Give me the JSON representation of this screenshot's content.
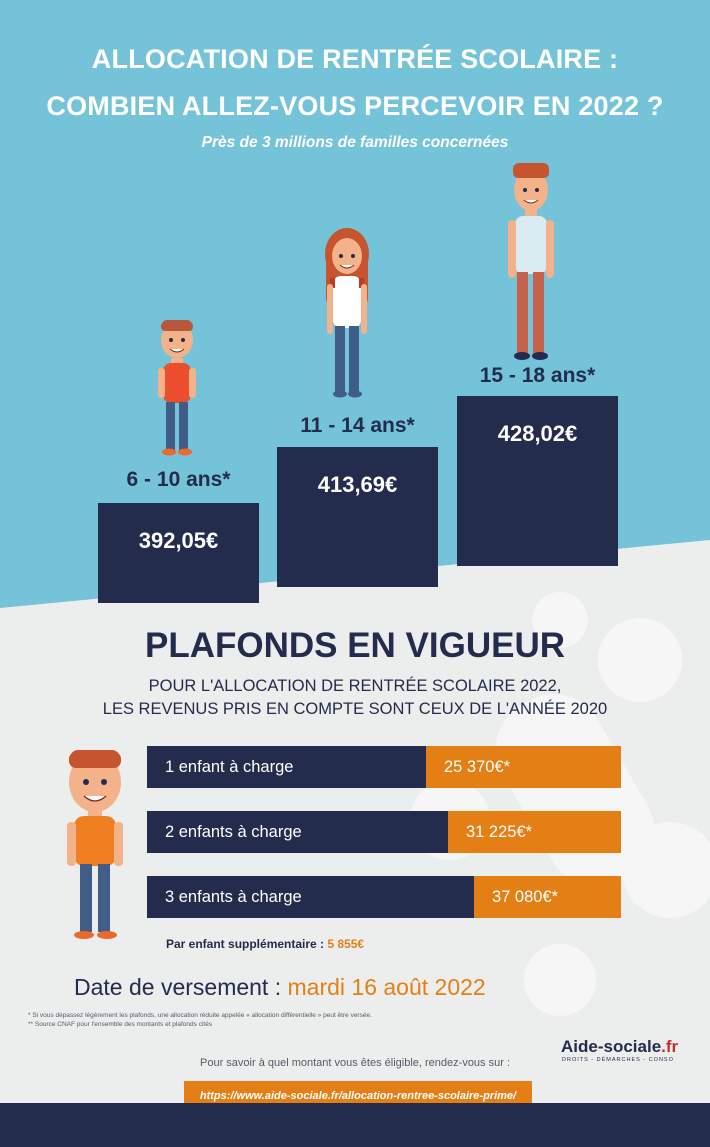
{
  "header": {
    "title_line1": "ALLOCATION DE RENTRÉE SCOLAIRE :",
    "title_line2": "COMBIEN ALLEZ-VOUS PERCEVOIR EN 2022 ?",
    "subtitle": "Près de 3 millions de familles concernées"
  },
  "ages": [
    {
      "label": "6 - 10 ans*",
      "amount": "392,05€"
    },
    {
      "label": "11 - 14 ans*",
      "amount": "413,69€"
    },
    {
      "label": "15 - 18 ans*",
      "amount": "428,02€"
    }
  ],
  "plafonds": {
    "title": "PLAFONDS EN VIGUEUR",
    "subtitle_line1": "POUR L'ALLOCATION DE RENTRÉE SCOLAIRE 2022,",
    "subtitle_line2": "LES REVENUS PRIS EN COMPTE SONT CEUX DE L'ANNÉE 2020",
    "rows": [
      {
        "label": "1 enfant à charge",
        "value": "25 370€*"
      },
      {
        "label": "2 enfants à charge",
        "value": "31 225€*"
      },
      {
        "label": "3 enfants à charge",
        "value": "37 080€*"
      }
    ],
    "extra_label": "Par enfant supplémentaire :",
    "extra_value": "5 855€"
  },
  "payment": {
    "label": "Date de versement :",
    "date": "mardi 16 août 2022"
  },
  "footnotes": [
    "* Si vous dépassez légèrement les plafonds, une allocation réduite appelée « allocation différentielle » peut être versée.",
    "** Source CNAF pour l'ensemble des montants et plafonds cités"
  ],
  "cta": {
    "text": "Pour savoir à quel montant vous êtes éligible, rendez-vous sur :",
    "url": "https://www.aide-sociale.fr/allocation-rentree-scolaire-prime/"
  },
  "logo": {
    "name": "Aide-sociale",
    "tld": ".fr",
    "tagline": "DROITS - DÉMARCHES - CONSO"
  },
  "colors": {
    "sky": "#75c3d8",
    "navy": "#232c4d",
    "orange": "#e47f16",
    "light_bg": "#eceded"
  }
}
